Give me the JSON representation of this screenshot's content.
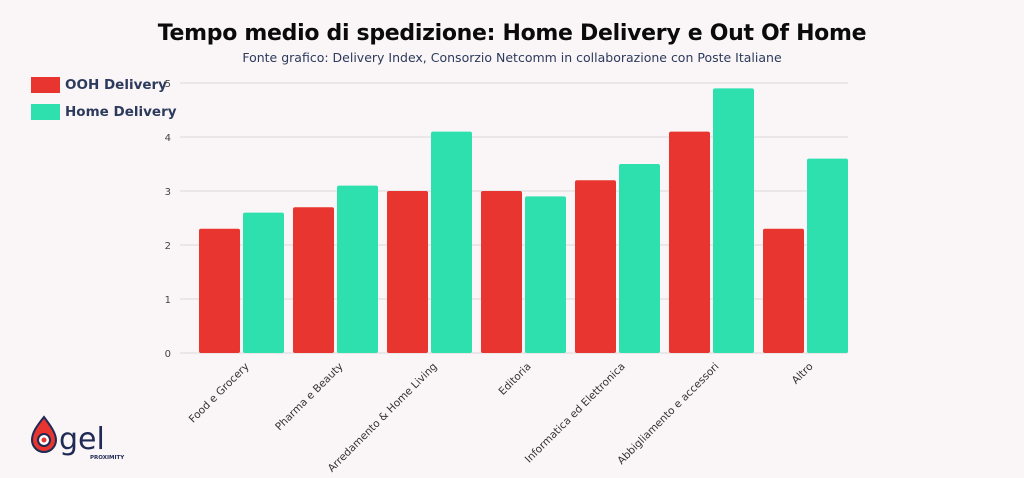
{
  "chart_data": {
    "type": "bar",
    "title": "Tempo medio di spedizione: Home Delivery e Out Of Home",
    "subtitle": "Fonte grafico: Delivery Index, Consorzio Netcomm in collaborazione con Poste Italiane",
    "categories": [
      "Food e Grocery",
      "Pharma e Beauty",
      "Arredamento & Home Living",
      "Editoria",
      "Informatica ed Elettronica",
      "Abbigliamento e accessori",
      "Altro"
    ],
    "series": [
      {
        "name": "OOH Delivery",
        "color": "#e8352f",
        "values": [
          2.3,
          2.7,
          3.0,
          3.0,
          3.2,
          4.1,
          2.3
        ]
      },
      {
        "name": "Home Delivery",
        "color": "#2de0ae",
        "values": [
          2.6,
          3.1,
          4.1,
          2.9,
          3.5,
          4.9,
          3.6
        ]
      }
    ],
    "ylim": [
      0,
      5
    ],
    "yticks": [
      0,
      1,
      2,
      3,
      4,
      5
    ],
    "xlabel": "",
    "ylabel": "",
    "grid": true,
    "legend_placement": "top-left"
  },
  "logo": {
    "text": "gel",
    "subtext": "PROXIMITY"
  }
}
